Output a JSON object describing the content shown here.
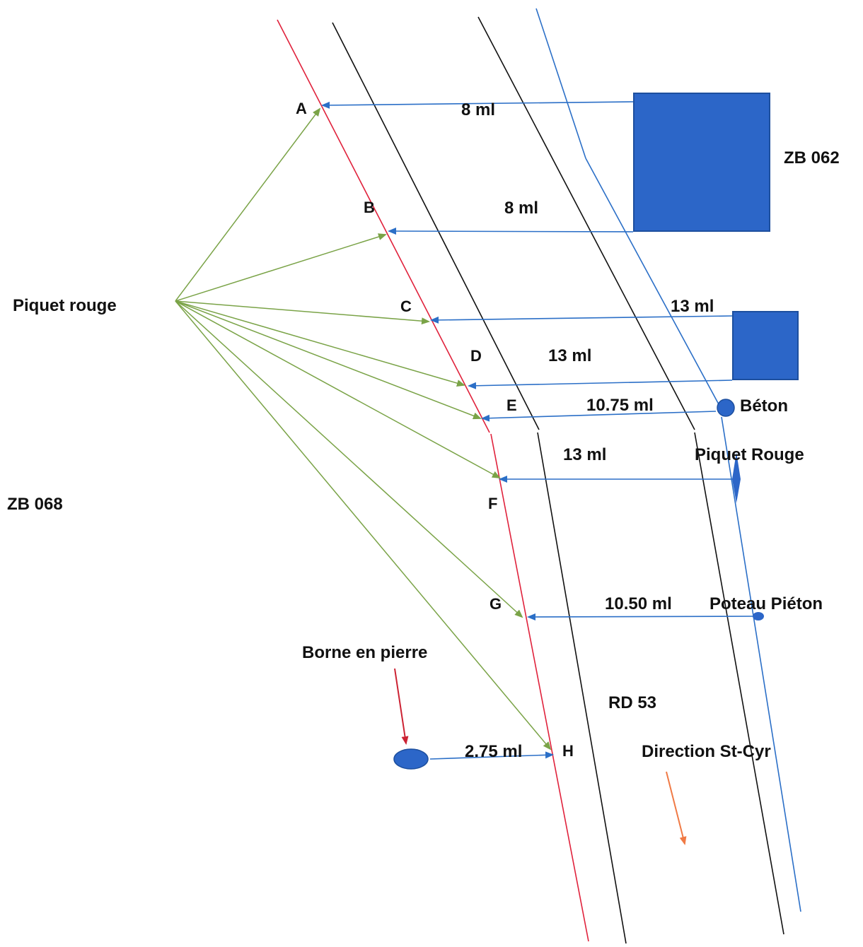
{
  "colors": {
    "property_line": "#e0223c",
    "road_edge": "#111111",
    "blue": "#2b6fc7",
    "building": "#2c66c8",
    "green": "#7aa347",
    "marker_red": "#cc2233",
    "direction_arrow": "#f07a45"
  },
  "labels": {
    "piquet_rouge": "Piquet rouge",
    "zb_062": "ZB 062",
    "zb_068": "ZB 068",
    "beton": "Béton",
    "piquet_rouge_2": "Piquet Rouge",
    "poteau_pieton": "Poteau Piéton",
    "borne_en_pierre": "Borne en pierre",
    "rd_53": "RD 53",
    "direction": "Direction St-Cyr"
  },
  "points": {
    "a": "A",
    "b": "B",
    "c": "C",
    "d": "D",
    "e": "E",
    "f": "F",
    "g": "G",
    "h": "H"
  },
  "measurements": {
    "a": "8 ml",
    "b": "8 ml",
    "c": "13 ml",
    "d": "13 ml",
    "e": "10.75 ml",
    "f": "13 ml",
    "g": "10.50 ml",
    "h": "2.75 ml"
  }
}
